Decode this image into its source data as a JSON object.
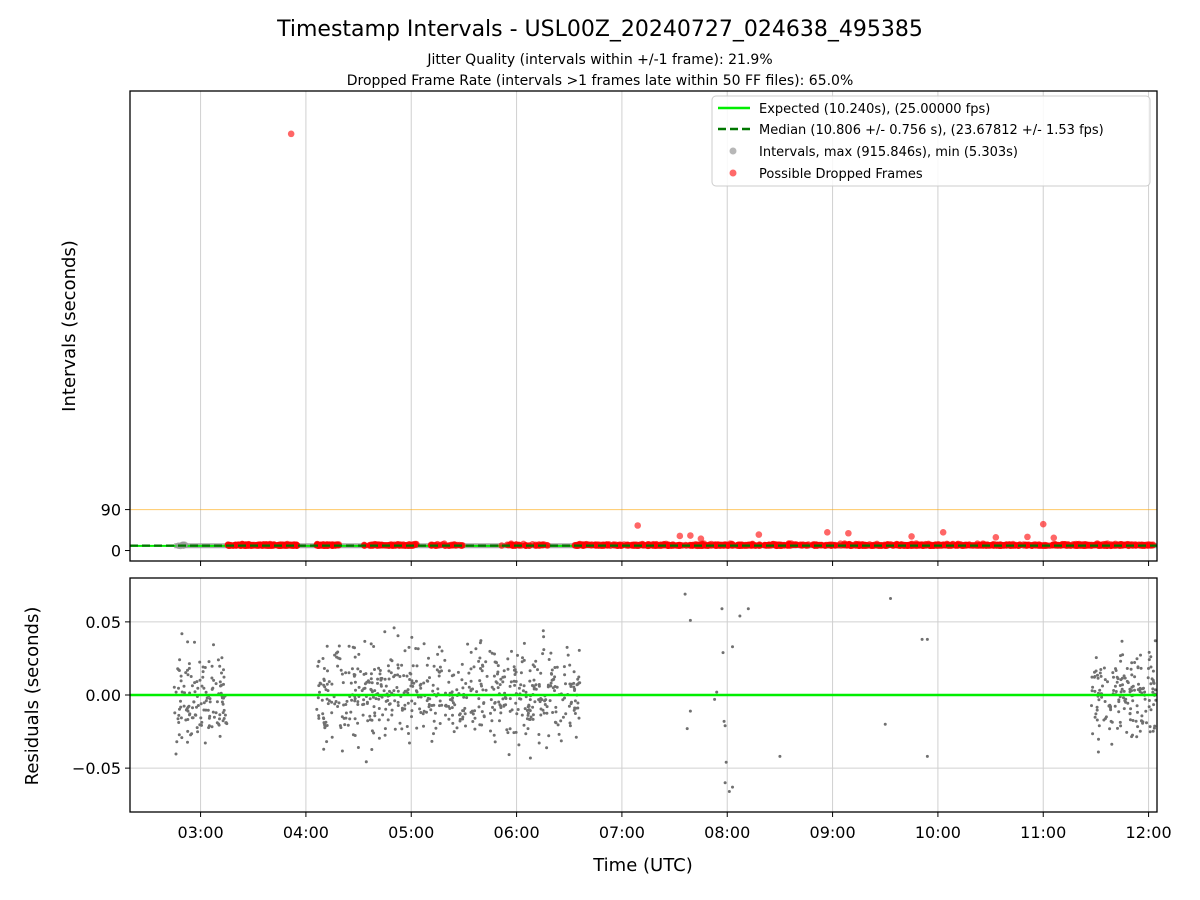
{
  "chart_data": [
    {
      "type": "scatter",
      "title": "Timestamp Intervals - USL00Z_20240727_024638_495385",
      "subtitle_1": "Jitter Quality (intervals within +/-1 frame): 21.9%",
      "subtitle_2": "Dropped Frame Rate (intervals >1 frames late within 50 FF files): 65.0%",
      "ylabel": "Intervals (seconds)",
      "ylim": [
        -23,
        1010
      ],
      "yticks": [
        {
          "value": 0,
          "label": "0"
        },
        {
          "value": 90,
          "label": "90"
        }
      ],
      "xlim_hours": [
        2.33,
        12.08
      ],
      "xticks": [
        {
          "value": 3,
          "label": "03:00"
        },
        {
          "value": 4,
          "label": "04:00"
        },
        {
          "value": 5,
          "label": "05:00"
        },
        {
          "value": 6,
          "label": "06:00"
        },
        {
          "value": 7,
          "label": "07:00"
        },
        {
          "value": 8,
          "label": "08:00"
        },
        {
          "value": 9,
          "label": "09:00"
        },
        {
          "value": 10,
          "label": "10:00"
        },
        {
          "value": 11,
          "label": "11:00"
        },
        {
          "value": 12,
          "label": "12:00"
        }
      ],
      "grid": true,
      "threshold_line": {
        "value": 90,
        "color": "#ffa500"
      },
      "expected": {
        "value": 10.24,
        "color": "#00ee00"
      },
      "median": {
        "value": 10.806,
        "color": "#006400"
      },
      "legend_position": "top-right",
      "legend": [
        {
          "kind": "line",
          "color": "#00ee00",
          "label": "Expected (10.240s), (25.00000 fps)"
        },
        {
          "kind": "dashed",
          "color": "#007700",
          "label": "Median (10.806 +/- 0.756 s), (23.67812 +/- 1.53 fps)"
        },
        {
          "kind": "dot",
          "color": "#999999",
          "label": "Intervals, max (915.846s), min (5.303s)"
        },
        {
          "kind": "dot",
          "color": "#ff4444",
          "label": "Possible Dropped Frames"
        }
      ],
      "series": [
        {
          "name": "Possible Dropped Frames",
          "color": "#ff0000",
          "outlier_points": [
            {
              "x": 3.86,
              "y": 915.8
            },
            {
              "x": 7.15,
              "y": 55
            },
            {
              "x": 11.0,
              "y": 58
            },
            {
              "x": 7.55,
              "y": 32
            },
            {
              "x": 8.3,
              "y": 35
            },
            {
              "x": 8.95,
              "y": 40
            },
            {
              "x": 9.15,
              "y": 38
            },
            {
              "x": 9.75,
              "y": 31
            },
            {
              "x": 10.05,
              "y": 40
            },
            {
              "x": 10.55,
              "y": 29
            },
            {
              "x": 10.85,
              "y": 30
            },
            {
              "x": 11.1,
              "y": 28
            },
            {
              "x": 7.75,
              "y": 26
            },
            {
              "x": 7.65,
              "y": 33
            }
          ]
        },
        {
          "name": "Intervals",
          "color": "#808080"
        }
      ]
    },
    {
      "type": "scatter",
      "ylabel": "Residuals (seconds)",
      "xlabel": "Time (UTC)",
      "ylim": [
        -0.08,
        0.08
      ],
      "yticks": [
        {
          "value": 0.05,
          "label": "0.05"
        },
        {
          "value": 0.0,
          "label": "0.00"
        },
        {
          "value": -0.05,
          "label": "−0.05"
        }
      ],
      "zero_line_color": "#00ee00",
      "point_color": "#707070",
      "clusters": [
        {
          "x_range": [
            2.75,
            3.25
          ],
          "count": 140
        },
        {
          "x_range": [
            4.1,
            6.6
          ],
          "count": 620
        },
        {
          "x_range": [
            11.45,
            12.08
          ],
          "count": 170
        }
      ],
      "sparse_points": [
        {
          "x": 7.6,
          "y": 0.069
        },
        {
          "x": 7.65,
          "y": 0.051
        },
        {
          "x": 7.62,
          "y": -0.023
        },
        {
          "x": 7.65,
          "y": -0.011
        },
        {
          "x": 7.95,
          "y": 0.059
        },
        {
          "x": 7.9,
          "y": 0.002
        },
        {
          "x": 7.88,
          "y": -0.003
        },
        {
          "x": 7.96,
          "y": 0.029
        },
        {
          "x": 8.05,
          "y": 0.033
        },
        {
          "x": 8.2,
          "y": 0.059
        },
        {
          "x": 8.12,
          "y": 0.054
        },
        {
          "x": 7.97,
          "y": -0.018
        },
        {
          "x": 7.98,
          "y": -0.021
        },
        {
          "x": 7.99,
          "y": -0.046
        },
        {
          "x": 7.98,
          "y": -0.06
        },
        {
          "x": 8.05,
          "y": -0.063
        },
        {
          "x": 8.02,
          "y": -0.066
        },
        {
          "x": 8.5,
          "y": -0.042
        },
        {
          "x": 9.55,
          "y": 0.066
        },
        {
          "x": 9.5,
          "y": -0.02
        },
        {
          "x": 9.85,
          "y": 0.038
        },
        {
          "x": 9.9,
          "y": 0.038
        },
        {
          "x": 9.9,
          "y": -0.042
        }
      ]
    }
  ],
  "shared_xlabel": "Time (UTC)",
  "colors": {
    "grid": "#d0d0d0",
    "axis": "#000000"
  }
}
